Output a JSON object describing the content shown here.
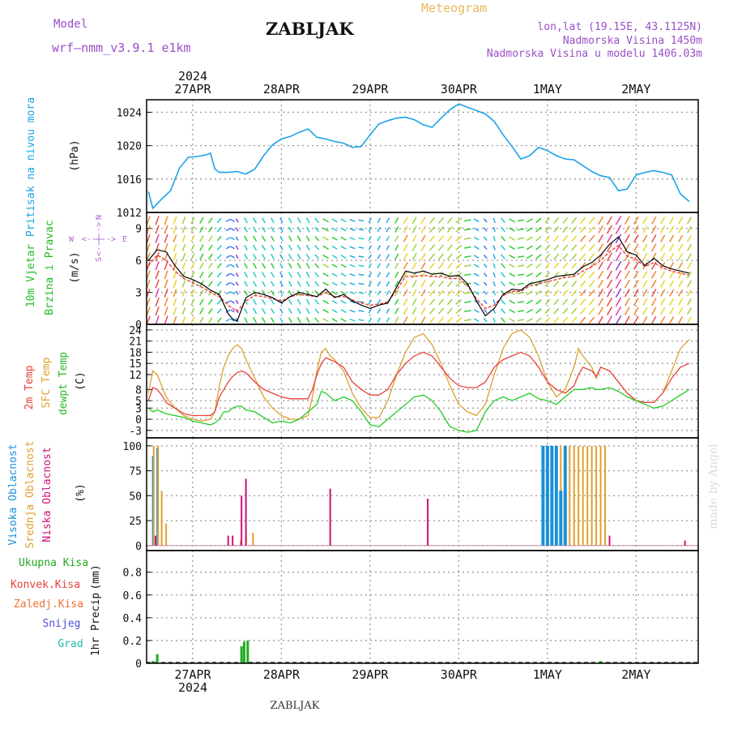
{
  "header": {
    "model_label": "Model",
    "model_name": "wrf—nmm_v3.9.1  e1km",
    "station_title": "ZABLJAK",
    "meteogram_label": "Meteogram",
    "coords": "lon,lat (19.15E, 43.1125N)",
    "elevation": "Nadmorska Visina 1450m",
    "model_elevation": "Nadmorska Visina u modelu 1406.03m",
    "year": "2024",
    "watermark": "made by Angel",
    "footer_station": "ZABLJAK"
  },
  "colors": {
    "pressure": "#1aa3e8",
    "wind_speed": "#000000",
    "wind_mean": "#e8413a",
    "temp_2m": "#e8413a",
    "temp_sfc": "#e0a030",
    "dewpoint": "#22cc22",
    "cloud_high": "#1a90d8",
    "cloud_mid": "#e0a030",
    "cloud_low": "#cc1177",
    "precip_total": "#22aa22",
    "precip_conv": "#e8413a",
    "precip_frozen": "#f07030",
    "precip_snow": "#5050e0",
    "precip_grad": "#22bbaa",
    "grid": "#999999"
  },
  "chart_data": [
    {
      "type": "line",
      "id": "pressure",
      "ylabel_text": "Pritisak na nivou mora",
      "unit": "(hPa)",
      "ylim": [
        1012,
        1025.5
      ],
      "yticks": [
        1012,
        1016,
        1020,
        1024
      ],
      "x_unit": "days from 27APR 00UTC",
      "x": [
        -0.5,
        -0.45,
        -0.35,
        -0.25,
        -0.15,
        -0.05,
        0.05,
        0.15,
        0.2,
        0.25,
        0.3,
        0.4,
        0.5,
        0.6,
        0.7,
        0.8,
        0.9,
        1.0,
        1.1,
        1.2,
        1.3,
        1.4,
        1.5,
        1.6,
        1.7,
        1.8,
        1.9,
        2.0,
        2.1,
        2.2,
        2.3,
        2.4,
        2.5,
        2.6,
        2.7,
        2.8,
        2.9,
        3.0,
        3.1,
        3.2,
        3.3,
        3.4,
        3.5,
        3.6,
        3.7,
        3.8,
        3.9,
        4.0,
        4.1,
        4.2,
        4.3,
        4.4,
        4.5,
        4.6,
        4.7,
        4.8,
        4.9,
        5.0,
        5.1,
        5.2,
        5.3,
        5.4,
        5.5,
        5.6
      ],
      "values": [
        1014.5,
        1012.5,
        1013.6,
        1014.6,
        1017.3,
        1018.6,
        1018.7,
        1018.9,
        1019.1,
        1017.2,
        1016.8,
        1016.8,
        1016.9,
        1016.6,
        1017.2,
        1018.8,
        1020.1,
        1020.8,
        1021.1,
        1021.6,
        1022.0,
        1021.0,
        1020.8,
        1020.5,
        1020.3,
        1019.8,
        1019.9,
        1021.3,
        1022.6,
        1023.0,
        1023.3,
        1023.4,
        1023.1,
        1022.5,
        1022.2,
        1023.3,
        1024.3,
        1025.0,
        1024.6,
        1024.2,
        1023.8,
        1022.9,
        1021.3,
        1019.9,
        1018.4,
        1018.8,
        1019.8,
        1019.4,
        1018.8,
        1018.4,
        1018.3,
        1017.6,
        1016.9,
        1016.4,
        1016.2,
        1014.6,
        1014.8,
        1016.5,
        1016.8,
        1017.0,
        1016.8,
        1016.5,
        1014.2,
        1013.3
      ]
    },
    {
      "type": "line",
      "id": "wind",
      "ylabel_text": "10m Vjetar",
      "ylabel_text2": "Brzina i Pravac",
      "unit": "(m/s)",
      "compass": {
        "n": "N",
        "s": "S",
        "w": "W",
        "e": "E",
        "arrow": "<--|-->"
      },
      "ylim": [
        0,
        10.5
      ],
      "yticks": [
        0,
        3,
        6,
        9
      ],
      "x": [
        -0.5,
        -0.4,
        -0.3,
        -0.2,
        -0.1,
        0,
        0.1,
        0.2,
        0.3,
        0.4,
        0.45,
        0.5,
        0.6,
        0.7,
        0.8,
        0.9,
        1.0,
        1.1,
        1.2,
        1.3,
        1.4,
        1.5,
        1.6,
        1.7,
        1.8,
        1.9,
        2.0,
        2.1,
        2.2,
        2.3,
        2.4,
        2.5,
        2.6,
        2.7,
        2.8,
        2.9,
        3.0,
        3.1,
        3.2,
        3.3,
        3.4,
        3.5,
        3.6,
        3.7,
        3.8,
        3.9,
        4.0,
        4.1,
        4.2,
        4.3,
        4.4,
        4.5,
        4.6,
        4.7,
        4.8,
        4.9,
        5.0,
        5.1,
        5.2,
        5.3,
        5.4,
        5.5,
        5.6
      ],
      "series": [
        {
          "values": [
            6,
            7,
            6.8,
            5.5,
            4.5,
            4.2,
            3.8,
            3.2,
            2.8,
            1.0,
            0.5,
            0.3,
            2.5,
            3,
            2.8,
            2.5,
            2,
            2.6,
            3.0,
            2.8,
            2.6,
            3.3,
            2.5,
            2.8,
            2.2,
            1.8,
            1.5,
            1.8,
            2.0,
            3.5,
            5.0,
            4.8,
            5.0,
            4.7,
            4.8,
            4.5,
            4.6,
            3.8,
            2.2,
            0.8,
            1.5,
            2.8,
            3.3,
            3.2,
            3.8,
            4.0,
            4.2,
            4.5,
            4.6,
            4.7,
            5.4,
            5.8,
            6.5,
            7.5,
            8.2,
            6.8,
            6.5,
            5.5,
            6.2,
            5.5,
            5.2,
            5.0,
            4.8
          ]
        },
        {
          "values": [
            5.5,
            6.5,
            6.0,
            5.0,
            4.3,
            3.9,
            3.5,
            3.0,
            2.6,
            1.8,
            1.5,
            1.2,
            2.2,
            2.7,
            2.6,
            2.4,
            2.2,
            2.6,
            2.8,
            2.7,
            2.6,
            3.0,
            2.6,
            2.6,
            2.3,
            2.0,
            1.8,
            1.9,
            2.1,
            3.2,
            4.5,
            4.5,
            4.6,
            4.5,
            4.5,
            4.3,
            4.3,
            3.6,
            2.4,
            1.5,
            1.8,
            2.7,
            3.1,
            3.1,
            3.6,
            3.8,
            4.0,
            4.2,
            4.4,
            4.5,
            5.0,
            5.4,
            6.0,
            6.8,
            7.4,
            6.4,
            6.1,
            5.4,
            5.8,
            5.3,
            5.0,
            4.8,
            4.6
          ]
        }
      ],
      "wind_dir_deg": [
        200,
        200,
        200,
        200,
        200,
        205,
        210,
        215,
        220,
        240,
        300,
        330,
        330,
        330,
        330,
        330,
        330,
        330,
        330,
        330,
        320,
        300,
        300,
        300,
        290,
        280,
        210,
        210,
        210,
        210,
        210,
        210,
        210,
        220,
        220,
        220,
        230,
        260,
        300,
        320,
        340,
        320,
        300,
        260,
        240,
        230,
        220,
        220,
        220,
        220,
        220,
        220,
        210,
        210,
        210,
        210,
        210,
        210,
        210,
        210,
        210,
        210,
        210
      ]
    },
    {
      "type": "line",
      "id": "temperature",
      "ylabel_text": "2m Temp",
      "ylabel_text2": "SFC Temp",
      "ylabel_text3": "dewpt Temp",
      "unit": "(C)",
      "ylim": [
        -5,
        25.5
      ],
      "yticks": [
        -3,
        0,
        3,
        5,
        8,
        12,
        15,
        18,
        21,
        24
      ],
      "x": [
        -0.5,
        -0.45,
        -0.4,
        -0.35,
        -0.3,
        -0.2,
        -0.1,
        0,
        0.1,
        0.2,
        0.25,
        0.3,
        0.35,
        0.4,
        0.45,
        0.5,
        0.55,
        0.6,
        0.7,
        0.8,
        0.9,
        1.0,
        1.1,
        1.2,
        1.3,
        1.35,
        1.4,
        1.45,
        1.5,
        1.55,
        1.6,
        1.7,
        1.8,
        1.9,
        2.0,
        2.1,
        2.2,
        2.3,
        2.4,
        2.5,
        2.6,
        2.7,
        2.8,
        2.9,
        3.0,
        3.1,
        3.2,
        3.3,
        3.4,
        3.5,
        3.6,
        3.7,
        3.8,
        3.9,
        4.0,
        4.1,
        4.2,
        4.3,
        4.35,
        4.4,
        4.5,
        4.55,
        4.6,
        4.7,
        4.8,
        4.9,
        5.0,
        5.1,
        5.2,
        5.3,
        5.4,
        5.5,
        5.6
      ],
      "series": [
        {
          "values": [
            5,
            8.5,
            8,
            6.5,
            4.5,
            3,
            1.5,
            1,
            1,
            1,
            2,
            6,
            8,
            10,
            11.5,
            12.5,
            13,
            12.5,
            10,
            8,
            7,
            6,
            5.5,
            5.5,
            5.5,
            8,
            12,
            15,
            16.5,
            16,
            15.5,
            14,
            10,
            8,
            6.5,
            6.5,
            8,
            12,
            15,
            17,
            18,
            17,
            14,
            11,
            9,
            8.5,
            8.5,
            10,
            14,
            16,
            17,
            18,
            17,
            14,
            10,
            8,
            7,
            9,
            12,
            14,
            13,
            11.5,
            14,
            13,
            10,
            7,
            5,
            4.5,
            4.5,
            7,
            11,
            14,
            15
          ]
        },
        {
          "values": [
            7,
            13,
            12,
            9,
            6,
            3,
            1,
            0,
            -0.5,
            0,
            2,
            9,
            14,
            17,
            19,
            20,
            19,
            16,
            11,
            6,
            3,
            1,
            0,
            0,
            1,
            6,
            13,
            18,
            19,
            17,
            16,
            13,
            7,
            3,
            0.5,
            0.5,
            5,
            12,
            18,
            22,
            23,
            20,
            15,
            9,
            4,
            2,
            1,
            4,
            12,
            19,
            23,
            24,
            22,
            17,
            10,
            6,
            8,
            14,
            19,
            17,
            14,
            11,
            14,
            13,
            10,
            7,
            5,
            4.5,
            4.5,
            7,
            13,
            19,
            21.5
          ]
        },
        {
          "values": [
            3,
            2,
            2.5,
            2,
            1.5,
            1,
            0.5,
            -0.5,
            -1,
            -1.5,
            -1,
            0,
            2,
            2,
            3,
            3.5,
            3.5,
            2.5,
            2,
            0.5,
            -1,
            -0.5,
            -1,
            0,
            2,
            3,
            4,
            7.5,
            7,
            6,
            5,
            6,
            5,
            2,
            -1.5,
            -2,
            0,
            2,
            4,
            6,
            6.5,
            5,
            2,
            -2,
            -3,
            -3.5,
            -3,
            2,
            5,
            6,
            5,
            6,
            7,
            5.5,
            5,
            4,
            6,
            8,
            8,
            8,
            8.5,
            8,
            8,
            8.5,
            7.5,
            6,
            5,
            4,
            3,
            3.5,
            5,
            6.5,
            8
          ]
        }
      ]
    },
    {
      "type": "bar",
      "id": "clouds",
      "ylabel_text": "Visoka Oblacnost",
      "ylabel_text2": "Srednja Oblacnost",
      "ylabel_text3": "Niska Oblacnost",
      "unit": "(%)",
      "ylim": [
        -5,
        108
      ],
      "yticks": [
        0,
        25,
        50,
        75,
        100
      ],
      "series": [
        {
          "x": [
            -0.45,
            -0.4,
            2.38,
            2.42,
            2.46,
            2.5
          ],
          "values": [
            90,
            98,
            0,
            0,
            0,
            0
          ]
        },
        {
          "x": [
            -0.44,
            -0.39,
            -0.35,
            -0.3,
            0.54,
            0.6,
            0.68,
            4.0,
            4.05,
            4.1,
            4.15,
            4.25,
            4.3,
            4.35,
            4.4,
            4.45,
            4.5,
            4.55,
            4.6,
            4.65
          ],
          "values": [
            100,
            100,
            55,
            22,
            5,
            10,
            13,
            100,
            100,
            100,
            100,
            100,
            100,
            100,
            100,
            100,
            100,
            100,
            100,
            100
          ]
        },
        {
          "x": [
            -0.42,
            0.4,
            0.45,
            0.55,
            0.6,
            1.55,
            2.65,
            4.7,
            5.55
          ],
          "values": [
            10,
            10,
            10,
            50,
            67,
            57,
            47,
            10,
            5
          ]
        }
      ],
      "high_block_x": [
        3.95,
        4.0,
        4.05,
        4.1,
        4.15,
        4.2
      ],
      "high_block_values": [
        100,
        100,
        100,
        100,
        55,
        100
      ]
    },
    {
      "type": "bar",
      "id": "precip",
      "ylabel_text": "1hr Precip",
      "unit": "(mm)",
      "legend": [
        "Ukupna  Kisa",
        "Konvek.Kisa",
        "Zaledj.Kisa",
        "Snijeg",
        "Grad"
      ],
      "ylim": [
        0,
        0.99
      ],
      "yticks": [
        0,
        0.2,
        0.4,
        0.6,
        0.8
      ],
      "x": [
        -0.45,
        -0.4,
        0.55,
        0.58,
        0.62,
        4.6
      ],
      "values": [
        0.02,
        0.08,
        0.15,
        0.19,
        0.2,
        0.02
      ]
    }
  ],
  "x_axis": {
    "days": [
      "27APR",
      "28APR",
      "29APR",
      "30APR",
      "1MAY",
      "2MAY"
    ],
    "xlim": [
      -0.52,
      5.7
    ]
  }
}
